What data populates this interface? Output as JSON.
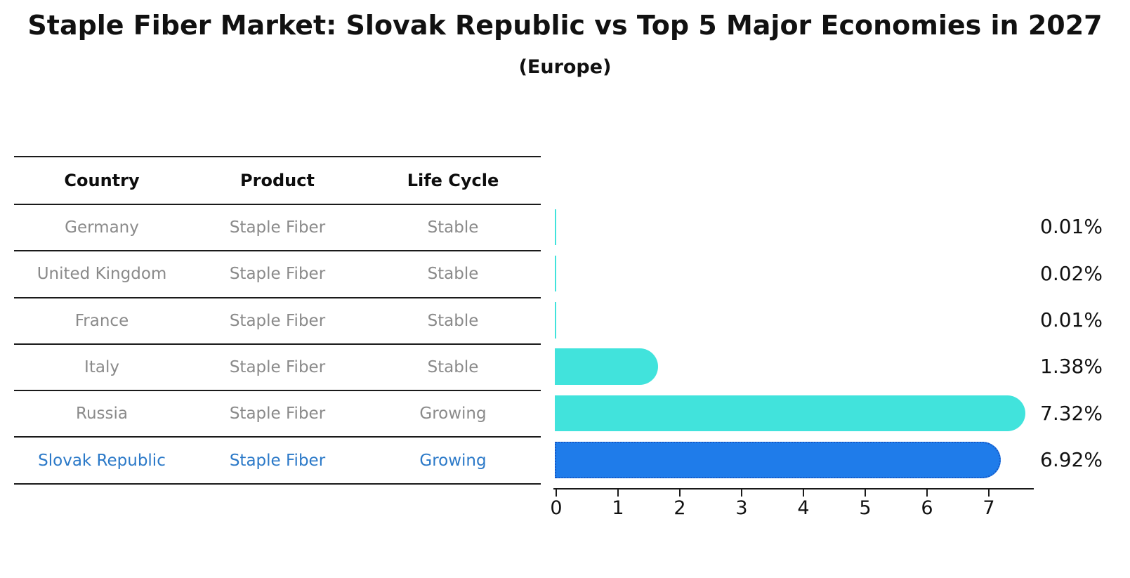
{
  "title": "Staple Fiber Market: Slovak Republic vs Top 5 Major Economies in 2027",
  "subtitle": "(Europe)",
  "table": {
    "headers": [
      "Country",
      "Product",
      "Life Cycle"
    ],
    "rows": [
      {
        "country": "Germany",
        "product": "Staple Fiber",
        "life_cycle": "Stable",
        "highlighted": false
      },
      {
        "country": "United Kingdom",
        "product": "Staple Fiber",
        "life_cycle": "Stable",
        "highlighted": false
      },
      {
        "country": "France",
        "product": "Staple Fiber",
        "life_cycle": "Stable",
        "highlighted": false
      },
      {
        "country": "Italy",
        "product": "Staple Fiber",
        "life_cycle": "Stable",
        "highlighted": false
      },
      {
        "country": "Russia",
        "product": "Staple Fiber",
        "life_cycle": "Growing",
        "highlighted": false
      },
      {
        "country": "Slovak Republic",
        "product": "Staple Fiber",
        "life_cycle": "Growing",
        "highlighted": true
      }
    ]
  },
  "chart_data": {
    "type": "bar",
    "orientation": "horizontal",
    "title": "Staple Fiber Market: Slovak Republic vs Top 5 Major Economies in 2027",
    "subtitle": "(Europe)",
    "categories": [
      "Germany",
      "United Kingdom",
      "France",
      "Italy",
      "Russia",
      "Slovak Republic"
    ],
    "values": [
      0.01,
      0.02,
      0.01,
      1.38,
      7.32,
      6.92
    ],
    "value_labels": [
      "0.01%",
      "0.02%",
      "0.01%",
      "1.38%",
      "7.32%",
      "6.92%"
    ],
    "xlabel": "",
    "ylabel": "",
    "xlim": [
      0,
      7.7
    ],
    "x_ticks": [
      0,
      1,
      2,
      3,
      4,
      5,
      6,
      7
    ],
    "grid": false,
    "legend": false,
    "highlight_category": "Slovak Republic",
    "colors": {
      "bar_default": "#41E3DC",
      "bar_highlight": "#1F7CEA",
      "bar_highlight_border": "#1559C8",
      "highlight_text": "#2B79C8",
      "row_text": "#8A8A8A",
      "header_text": "#0D0D0D",
      "axis": "#1A1A1A"
    }
  }
}
